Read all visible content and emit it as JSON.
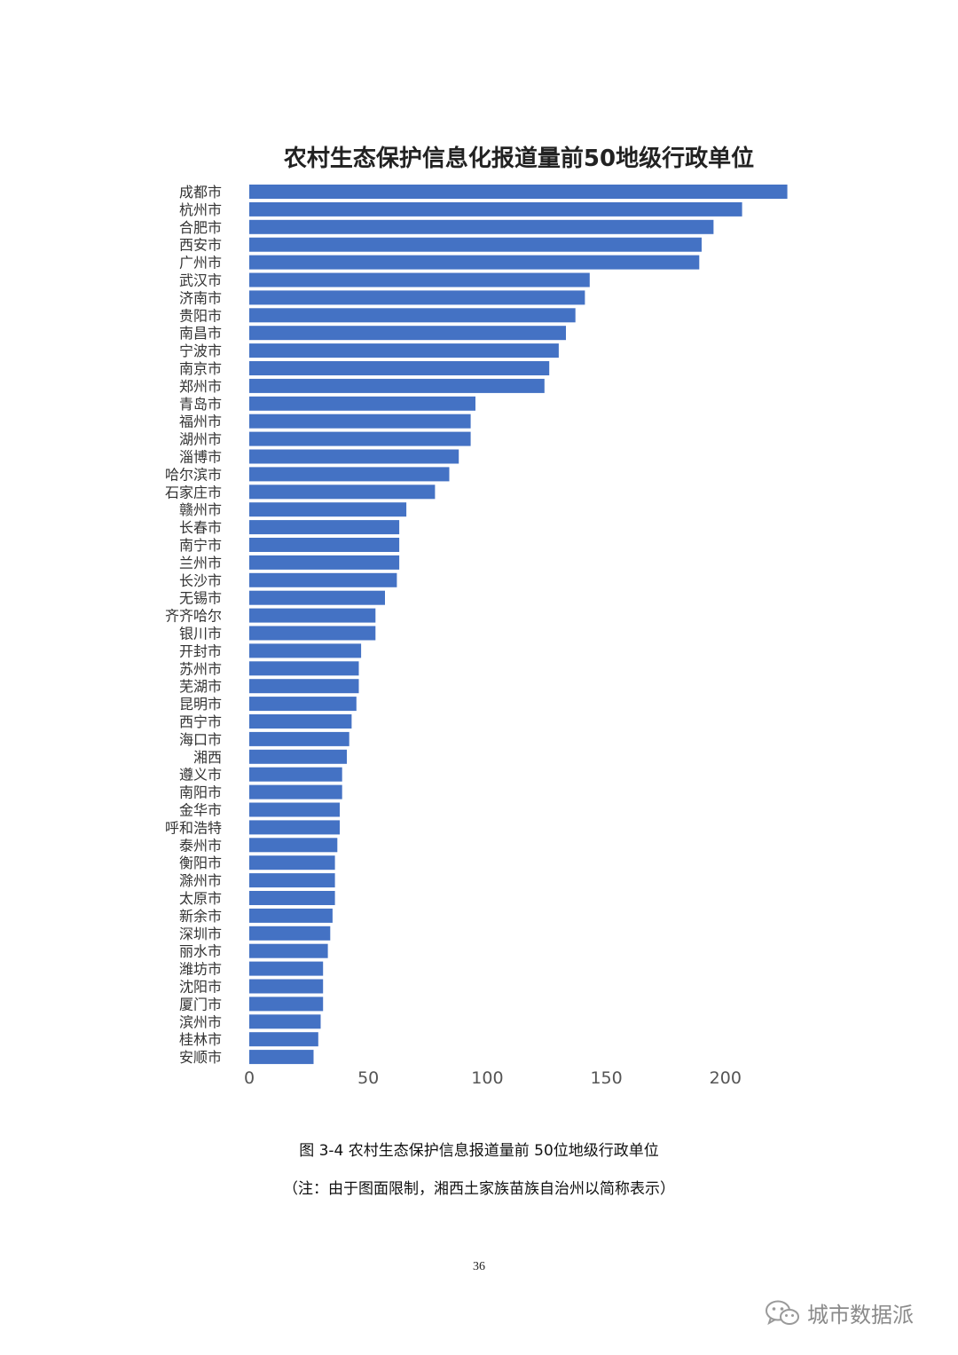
{
  "chart_data": {
    "type": "bar",
    "orientation": "horizontal",
    "title": "农村生态保护信息化报道量前50地级行政单位",
    "xlabel": "",
    "ylabel": "",
    "xlim": [
      0,
      230
    ],
    "xticks": [
      0,
      50,
      100,
      150,
      200
    ],
    "grid": false,
    "bar_color": "#4472c4",
    "categories": [
      "成都市",
      "杭州市",
      "合肥市",
      "西安市",
      "广州市",
      "武汉市",
      "济南市",
      "贵阳市",
      "南昌市",
      "宁波市",
      "南京市",
      "郑州市",
      "青岛市",
      "福州市",
      "湖州市",
      "淄博市",
      "哈尔滨市",
      "石家庄市",
      "赣州市",
      "长春市",
      "南宁市",
      "兰州市",
      "长沙市",
      "无锡市",
      "齐齐哈尔",
      "银川市",
      "开封市",
      "苏州市",
      "芜湖市",
      "昆明市",
      "西宁市",
      "海口市",
      "湘西",
      "遵义市",
      "南阳市",
      "金华市",
      "呼和浩特",
      "泰州市",
      "衡阳市",
      "滁州市",
      "太原市",
      "新余市",
      "深圳市",
      "丽水市",
      "潍坊市",
      "沈阳市",
      "厦门市",
      "滨州市",
      "桂林市",
      "安顺市"
    ],
    "values": [
      226,
      207,
      195,
      190,
      189,
      143,
      141,
      137,
      133,
      130,
      126,
      124,
      95,
      93,
      93,
      88,
      84,
      78,
      66,
      63,
      63,
      63,
      62,
      57,
      53,
      53,
      47,
      46,
      46,
      45,
      43,
      42,
      41,
      39,
      39,
      38,
      38,
      37,
      36,
      36,
      36,
      35,
      34,
      33,
      31,
      31,
      31,
      30,
      29,
      27
    ]
  },
  "caption": "图 3-4 农村生态保护信息报道量前 50位地级行政单位",
  "note": "（注：由于图面限制，湘西土家族苗族自治州以简称表示）",
  "page_number": "36",
  "watermark": {
    "icon": "wechat-icon",
    "text": "城市数据派"
  }
}
